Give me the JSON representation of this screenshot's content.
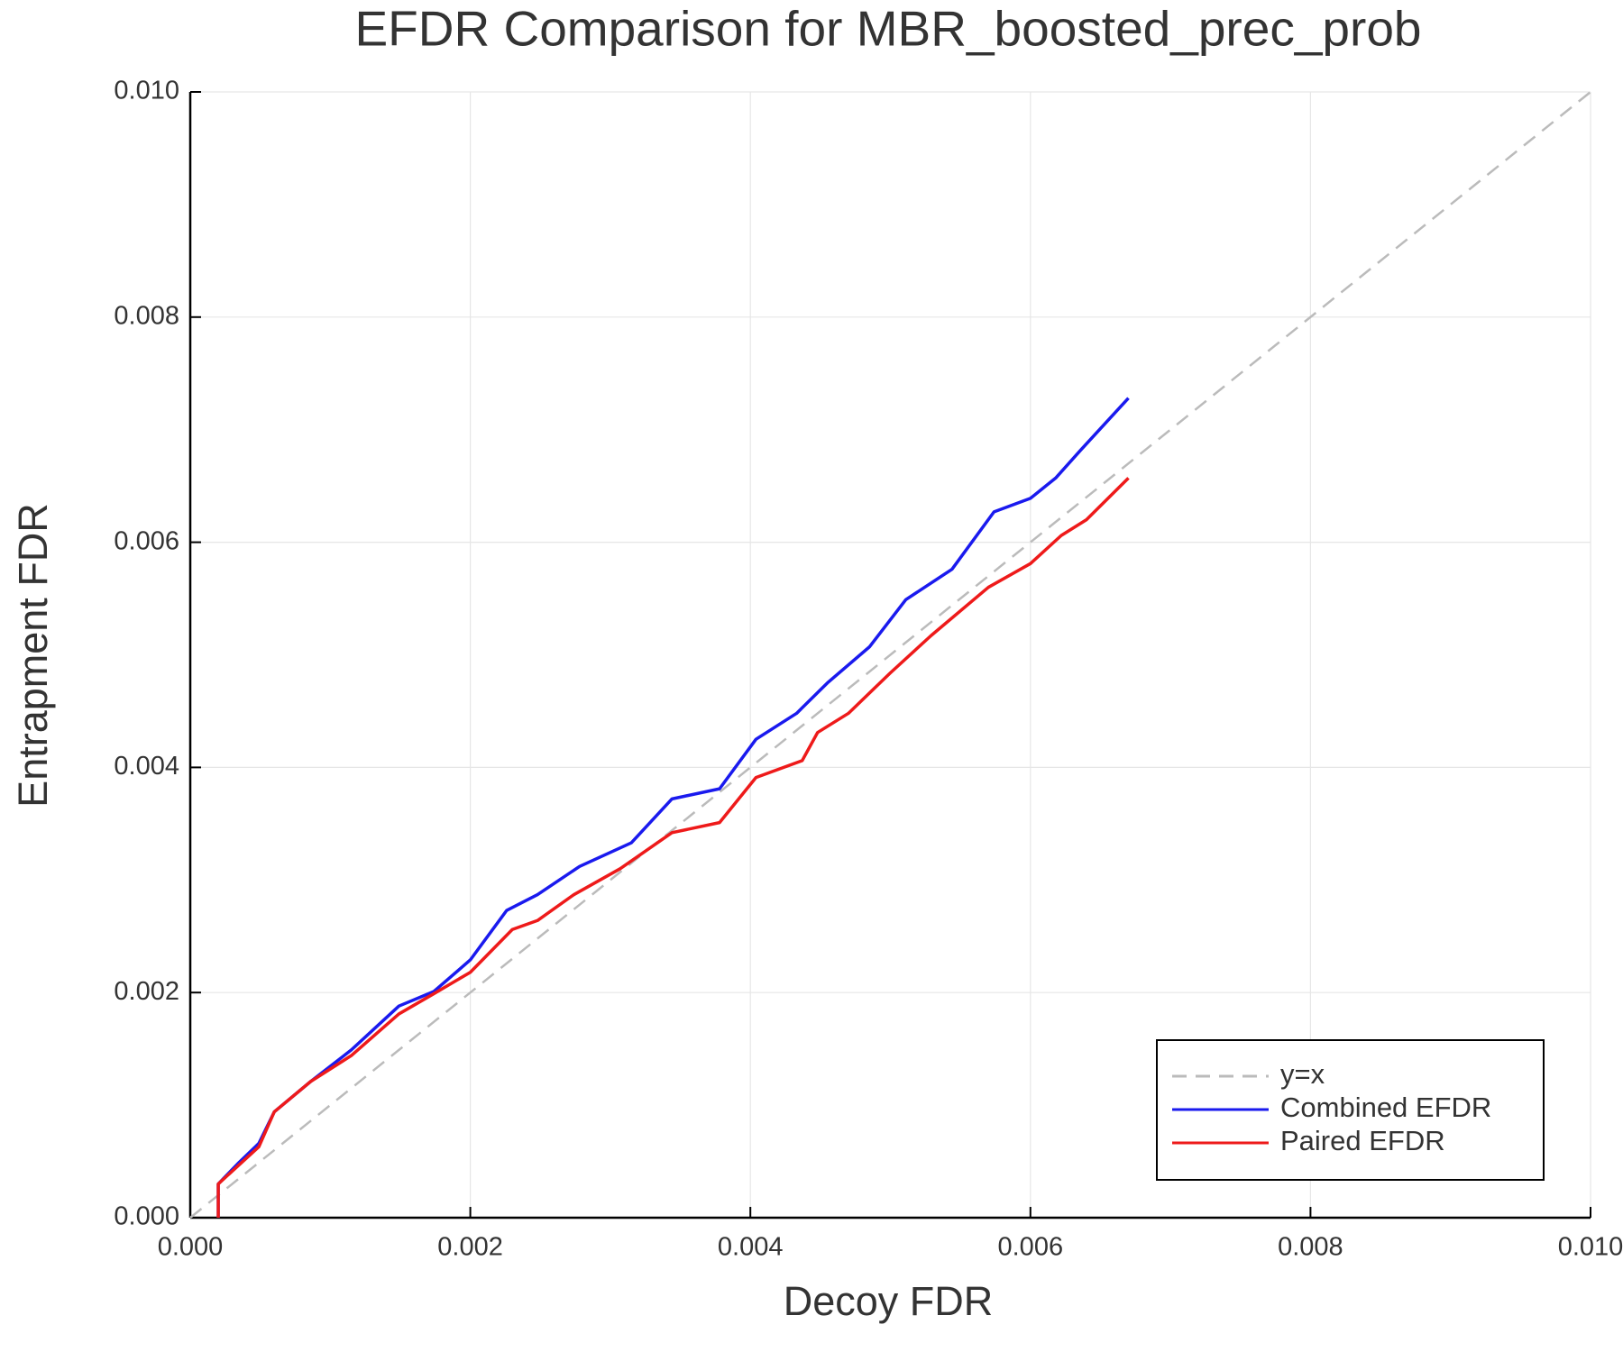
{
  "chart_data": {
    "type": "line",
    "title": "EFDR Comparison for MBR_boosted_prec_prob",
    "x_label": "Decoy FDR",
    "y_label": "Entrapment FDR",
    "xlim": [
      0,
      0.01
    ],
    "ylim": [
      0,
      0.01
    ],
    "xticks": [
      {
        "value": 0,
        "label": "0.000"
      },
      {
        "value": 0.002,
        "label": "0.002"
      },
      {
        "value": 0.004,
        "label": "0.004"
      },
      {
        "value": 0.006,
        "label": "0.006"
      },
      {
        "value": 0.008,
        "label": "0.008"
      },
      {
        "value": 0.01,
        "label": "0.010"
      }
    ],
    "yticks": [
      {
        "value": 0,
        "label": "0.000"
      },
      {
        "value": 0.002,
        "label": "0.002"
      },
      {
        "value": 0.004,
        "label": "0.004"
      },
      {
        "value": 0.006,
        "label": "0.006"
      },
      {
        "value": 0.008,
        "label": "0.008"
      },
      {
        "value": 0.01,
        "label": "0.010"
      }
    ],
    "grid": true,
    "legend": "bottom right",
    "series": [
      {
        "name": "y=x",
        "color": "#bbbbbb",
        "style": "dashed",
        "x": [
          0,
          0.01
        ],
        "values": [
          0,
          0.01
        ]
      },
      {
        "name": "Combined EFDR",
        "color": "#1a1aee",
        "style": "solid",
        "x": [
          0.0002,
          0.0002,
          0.0002,
          0.00034,
          0.00049,
          0.0006,
          0.00086,
          0.00115,
          0.00149,
          0.00174,
          0.002,
          0.00226,
          0.00248,
          0.00278,
          0.00315,
          0.00344,
          0.00378,
          0.00404,
          0.00433,
          0.00455,
          0.00485,
          0.00511,
          0.00544,
          0.00574,
          0.006,
          0.00618,
          0.00636,
          0.0067
        ],
        "values": [
          0,
          0.0003,
          0.0003,
          0.00048,
          0.00066,
          0.00094,
          0.00121,
          0.00149,
          0.00188,
          0.00201,
          0.00229,
          0.00273,
          0.00287,
          0.00312,
          0.00333,
          0.00372,
          0.00381,
          0.00425,
          0.00448,
          0.00475,
          0.00507,
          0.00549,
          0.00576,
          0.00627,
          0.00639,
          0.00657,
          0.00682,
          0.00728
        ]
      },
      {
        "name": "Paired EFDR",
        "color": "#ee1a1a",
        "style": "solid",
        "x": [
          0.0002,
          0.0002,
          0.00049,
          0.0006,
          0.00086,
          0.00115,
          0.00149,
          0.00174,
          0.002,
          0.0023,
          0.00248,
          0.00274,
          0.00307,
          0.00344,
          0.00378,
          0.00404,
          0.00437,
          0.00448,
          0.0047,
          0.005,
          0.00529,
          0.0057,
          0.006,
          0.00622,
          0.0064,
          0.0067
        ],
        "values": [
          0,
          0.0003,
          0.00063,
          0.00094,
          0.00121,
          0.00144,
          0.00181,
          0.00199,
          0.00218,
          0.00256,
          0.00264,
          0.00287,
          0.0031,
          0.00342,
          0.00351,
          0.00391,
          0.00406,
          0.00431,
          0.00448,
          0.00484,
          0.00517,
          0.0056,
          0.00581,
          0.00606,
          0.0062,
          0.00657
        ]
      }
    ]
  }
}
